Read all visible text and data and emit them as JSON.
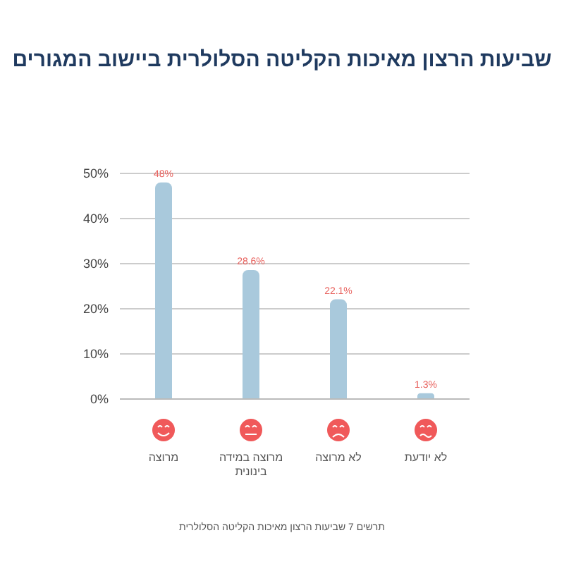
{
  "chart_data": {
    "type": "bar",
    "title": "שביעות הרצון מאיכות הקליטה הסלולרית ביישוב המגורים",
    "categories": [
      "מרוצה",
      "מרוצה במידה בינונית",
      "לא מרוצה",
      "לא יודעת"
    ],
    "values": [
      48,
      28.6,
      22.1,
      1.3
    ],
    "value_labels": [
      "48%",
      "28.6%",
      "22.1%",
      "1.3%"
    ],
    "color": "#a9c9dc",
    "ylim": [
      0,
      50
    ],
    "yticks": [
      {
        "value": 0,
        "label": "0%"
      },
      {
        "value": 10,
        "label": "10%"
      },
      {
        "value": 20,
        "label": "20%"
      },
      {
        "value": 30,
        "label": "30%"
      },
      {
        "value": 40,
        "label": "40%"
      },
      {
        "value": 50,
        "label": "50%"
      }
    ],
    "grid": "y",
    "annotations": [
      "תרשים 7 שביעות הרצון מאיכות הקליטה הסלולרית"
    ]
  }
}
